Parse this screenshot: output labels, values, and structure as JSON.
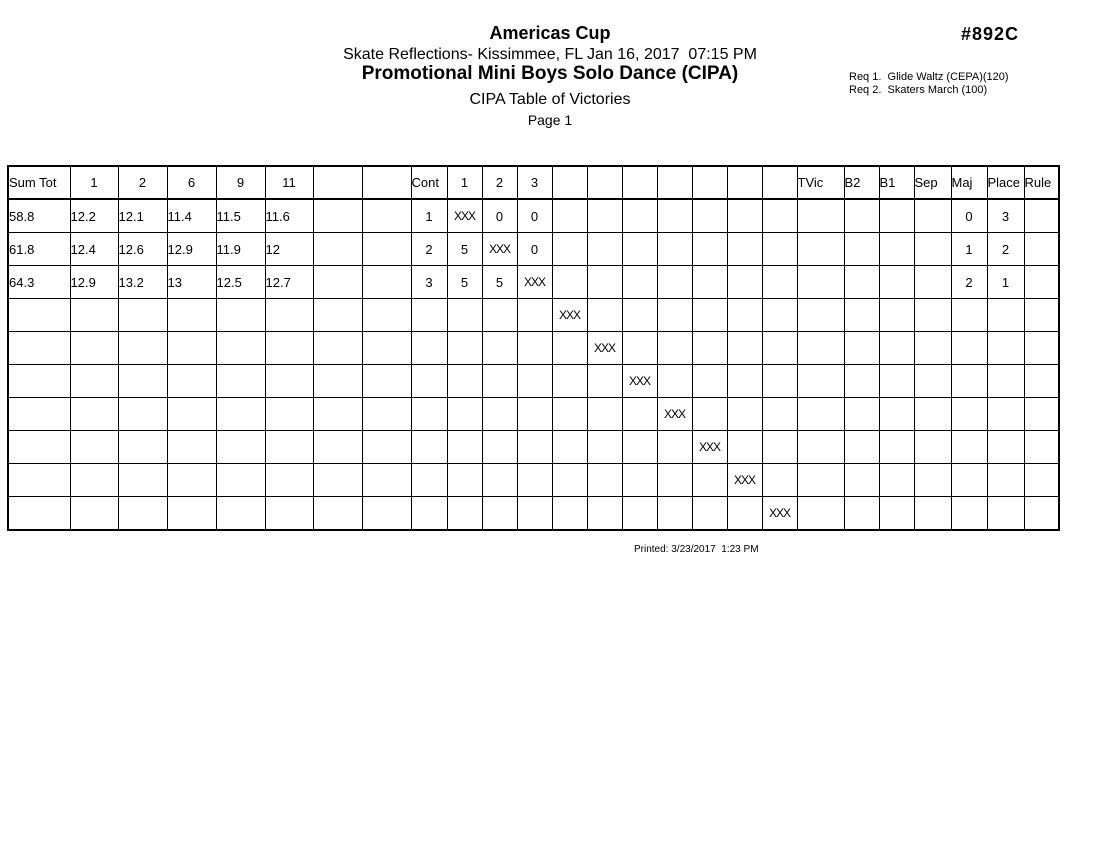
{
  "header": {
    "event_title": "Americas Cup",
    "venue_line": "Skate Reflections- Kissimmee, FL Jan 16, 2017  07:15 PM",
    "category_title": "Promotional Mini Boys Solo Dance (CIPA)",
    "subtitle": "CIPA Table of Victories",
    "page_label": "Page 1",
    "event_number": "#892C",
    "requirements": [
      "Req 1.  Glide Waltz (CEPA)(120)",
      "Req 2.  Skaters March (100)"
    ]
  },
  "table": {
    "column_labels": [
      "Sum Tot",
      "1",
      "2",
      "6",
      "9",
      "11",
      "",
      "",
      "Cont",
      "1",
      "2",
      "3",
      "",
      "",
      "",
      "",
      "",
      "",
      "",
      "TVic",
      "B2",
      "B1",
      "Sep",
      "Maj",
      "Place",
      "Rule"
    ],
    "rows": [
      [
        "58.8",
        "12.2",
        "12.1",
        "11.4",
        "11.5",
        "11.6",
        "",
        "",
        "1",
        "XXX",
        "0",
        "0",
        "",
        "",
        "",
        "",
        "",
        "",
        "",
        "",
        "",
        "",
        "",
        "0",
        "3",
        ""
      ],
      [
        "61.8",
        "12.4",
        "12.6",
        "12.9",
        "11.9",
        "12",
        "",
        "",
        "2",
        "5",
        "XXX",
        "0",
        "",
        "",
        "",
        "",
        "",
        "",
        "",
        "",
        "",
        "",
        "",
        "1",
        "2",
        ""
      ],
      [
        "64.3",
        "12.9",
        "13.2",
        "13",
        "12.5",
        "12.7",
        "",
        "",
        "3",
        "5",
        "5",
        "XXX",
        "",
        "",
        "",
        "",
        "",
        "",
        "",
        "",
        "",
        "",
        "",
        "2",
        "1",
        ""
      ],
      [
        "",
        "",
        "",
        "",
        "",
        "",
        "",
        "",
        "",
        "",
        "",
        "",
        "XXX",
        "",
        "",
        "",
        "",
        "",
        "",
        "",
        "",
        "",
        "",
        "",
        "",
        ""
      ],
      [
        "",
        "",
        "",
        "",
        "",
        "",
        "",
        "",
        "",
        "",
        "",
        "",
        "",
        "XXX",
        "",
        "",
        "",
        "",
        "",
        "",
        "",
        "",
        "",
        "",
        "",
        ""
      ],
      [
        "",
        "",
        "",
        "",
        "",
        "",
        "",
        "",
        "",
        "",
        "",
        "",
        "",
        "",
        "XXX",
        "",
        "",
        "",
        "",
        "",
        "",
        "",
        "",
        "",
        "",
        ""
      ],
      [
        "",
        "",
        "",
        "",
        "",
        "",
        "",
        "",
        "",
        "",
        "",
        "",
        "",
        "",
        "",
        "XXX",
        "",
        "",
        "",
        "",
        "",
        "",
        "",
        "",
        "",
        ""
      ],
      [
        "",
        "",
        "",
        "",
        "",
        "",
        "",
        "",
        "",
        "",
        "",
        "",
        "",
        "",
        "",
        "",
        "XXX",
        "",
        "",
        "",
        "",
        "",
        "",
        "",
        "",
        ""
      ],
      [
        "",
        "",
        "",
        "",
        "",
        "",
        "",
        "",
        "",
        "",
        "",
        "",
        "",
        "",
        "",
        "",
        "",
        "XXX",
        "",
        "",
        "",
        "",
        "",
        "",
        "",
        ""
      ],
      [
        "",
        "",
        "",
        "",
        "",
        "",
        "",
        "",
        "",
        "",
        "",
        "",
        "",
        "",
        "",
        "",
        "",
        "",
        "XXX",
        "",
        "",
        "",
        "",
        "",
        "",
        ""
      ]
    ]
  },
  "footer": {
    "printed_label": "Printed: 3/23/2017  1:23 PM"
  }
}
